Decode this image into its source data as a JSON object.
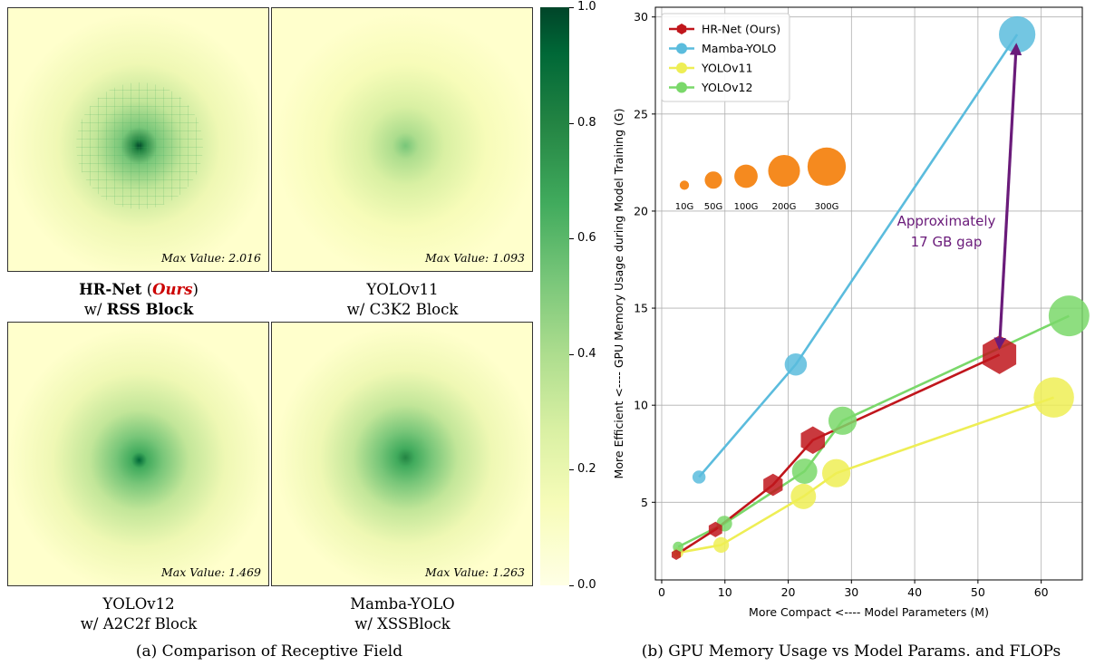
{
  "panel_a": {
    "heatmaps": [
      {
        "max_label": "Max Value: 2.016",
        "name_main": "HR-Net",
        "name_open": "(",
        "name_ours": "Ours",
        "name_close": ")",
        "name_w": "w/",
        "name_block": "RSS Block"
      },
      {
        "max_label": "Max Value: 1.093",
        "line1": "YOLOv11",
        "line2": "w/ C3K2 Block"
      },
      {
        "max_label": "Max Value: 1.469",
        "line1": "YOLOv12",
        "line2": "w/ A2C2f Block"
      },
      {
        "max_label": "Max Value: 1.263",
        "line1": "Mamba-YOLO",
        "line2": "w/ XSSBlock"
      }
    ],
    "colorbar_ticks": [
      "0.0",
      "0.2",
      "0.4",
      "0.6",
      "0.8",
      "1.0"
    ],
    "caption": "(a) Comparison of Receptive Field"
  },
  "panel_b": {
    "caption": "(b) GPU Memory Usage vs Model Params. and FLOPs",
    "size_legend": [
      "10G",
      "50G",
      "100G",
      "200G",
      "300G"
    ],
    "annotation_line1": "Approximately",
    "annotation_line2": "17 GB gap"
  },
  "chart_data": {
    "type": "scatter",
    "xlabel": "More Compact <---- Model Parameters (M)",
    "ylabel": "More Efficient <---- GPU Memory Usage during Model Training (G)",
    "xlim": [
      -1,
      66.5
    ],
    "ylim": [
      1,
      30.5
    ],
    "xticks": [
      0,
      10,
      20,
      30,
      40,
      50,
      60
    ],
    "yticks": [
      5,
      10,
      15,
      20,
      25,
      30
    ],
    "grid": true,
    "legend_position": "top-left",
    "series": [
      {
        "name": "HR-Net (Ours)",
        "color": "#c0161c",
        "marker": "hexagon",
        "x": [
          2.3,
          8.5,
          17.6,
          23.9,
          53.4
        ],
        "y": [
          2.3,
          3.6,
          5.9,
          8.2,
          12.6
        ],
        "flops": [
          6,
          18,
          45,
          75,
          160
        ]
      },
      {
        "name": "Mamba-YOLO",
        "color": "#5bbcdd",
        "marker": "circle",
        "x": [
          5.9,
          21.2,
          56.2
        ],
        "y": [
          6.3,
          12.1,
          29.1
        ],
        "flops": [
          13,
          50,
          156
        ]
      },
      {
        "name": "YOLOv11",
        "color": "#eeee55",
        "marker": "circle",
        "x": [
          2.6,
          9.4,
          22.4,
          27.6,
          62.0
        ],
        "y": [
          2.4,
          2.8,
          5.3,
          6.5,
          10.4
        ],
        "flops": [
          7,
          21,
          68,
          88,
          195
        ]
      },
      {
        "name": "YOLOv12",
        "color": "#7ad86a",
        "marker": "circle",
        "x": [
          2.6,
          9.9,
          22.6,
          28.6,
          64.4
        ],
        "y": [
          2.7,
          3.9,
          6.6,
          9.2,
          14.6
        ],
        "flops": [
          7,
          21,
          68,
          88,
          199
        ]
      }
    ],
    "size_legend_values": [
      10,
      50,
      100,
      200,
      300
    ],
    "gap_arrow": {
      "x": [
        53.4,
        56.2
      ],
      "y": [
        12.6,
        29.1
      ],
      "color": "#6a1b7a"
    }
  }
}
